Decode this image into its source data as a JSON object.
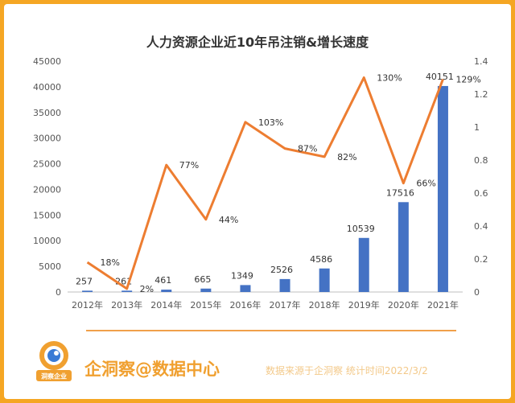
{
  "chart_data": {
    "type": "bar+line",
    "title": "人力资源企业近10年吊注销&增长速度",
    "categories": [
      "2012年",
      "2013年",
      "2014年",
      "2015年",
      "2016年",
      "2017年",
      "2018年",
      "2019年",
      "2020年",
      "2021年"
    ],
    "bar_values": [
      257,
      261,
      461,
      665,
      1349,
      2526,
      4586,
      10539,
      17516,
      40151
    ],
    "bar_labels": [
      "257",
      "261",
      "461",
      "665",
      "1349",
      "2526",
      "4586",
      "10539",
      "17516",
      "40151"
    ],
    "line_values": [
      0.18,
      0.02,
      0.77,
      0.44,
      1.03,
      0.87,
      0.82,
      1.3,
      0.66,
      1.29
    ],
    "line_labels": [
      "18%",
      "2%",
      "77%",
      "44%",
      "103%",
      "87%",
      "82%",
      "130%",
      "66%",
      "129%"
    ],
    "y_left": {
      "min": 0,
      "max": 45000,
      "ticks": [
        "0",
        "5000",
        "10000",
        "15000",
        "20000",
        "25000",
        "30000",
        "35000",
        "40000",
        "45000"
      ]
    },
    "y_right": {
      "min": 0,
      "max": 1.4,
      "ticks": [
        "0",
        "0.2",
        "0.4",
        "0.6",
        "0.8",
        "1",
        "1.2",
        "1.4"
      ]
    },
    "colors": {
      "bar": "#4472c4",
      "line": "#ed7d31"
    }
  },
  "footer": {
    "brand": "企洞察@数据中心",
    "logo_text": "洞察企业",
    "source": "数据来源于企洞察   统计时间2022/3/2"
  }
}
